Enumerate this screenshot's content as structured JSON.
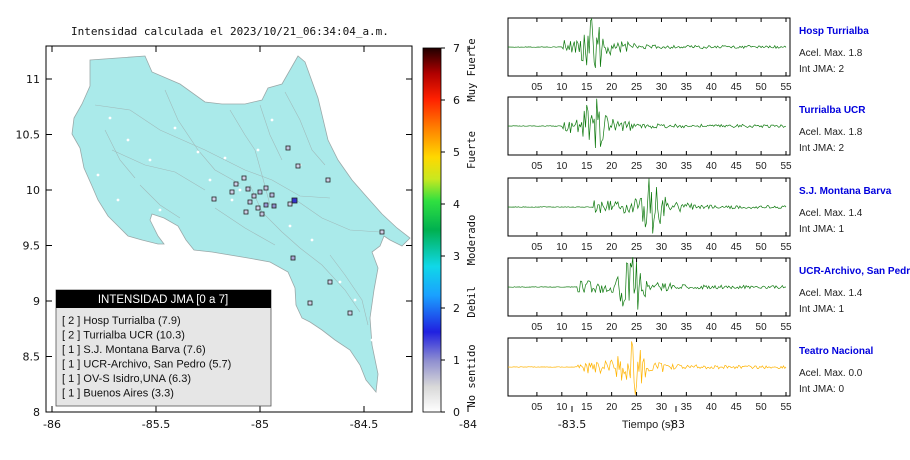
{
  "map": {
    "title": "Intensidad calculada el 2023/10/21_06:34:04_a.m.",
    "y_ticks": [
      "11",
      "10.5",
      "10",
      "9.5",
      "9",
      "8.5",
      "8"
    ],
    "x_ticks": [
      "-86",
      "-85.5",
      "-85",
      "-84.5",
      "-84",
      "-83.5",
      "-83"
    ],
    "colorbar": {
      "ticks": [
        "7",
        "6",
        "5",
        "4",
        "3",
        "2",
        "1",
        "0"
      ],
      "bands": [
        "Muy Fuerte",
        "Fuerte",
        "Moderado",
        "Debil",
        "No sentido"
      ]
    },
    "legend": {
      "header": "INTENSIDAD JMA [0 a 7]",
      "entries": [
        "[ 2 ]  Hosp Turrialba (7.9)",
        "[ 2 ]  Turrialba UCR (10.3)",
        "[ 1 ]  S.J. Montana Barva (7.6)",
        "[ 1 ]  UCR-Archivo, San Pedro (5.7)",
        "[ 1 ]  OV-S Isidro,UNA (6.3)",
        "[ 1 ]  Buenos Aires (3.3)"
      ]
    }
  },
  "waveforms": {
    "x_ticks": [
      "05",
      "10",
      "15",
      "20",
      "25",
      "30",
      "35",
      "40",
      "45",
      "50",
      "55"
    ],
    "xlabel": "Tiempo (s)",
    "stations": [
      {
        "name": "Hosp Turrialba",
        "accel": "Acel. Max. 1.8",
        "jma": "Int JMA: 2",
        "color": "#0f7a0f",
        "onset_s": 10,
        "peak_s": 16.5
      },
      {
        "name": "Turrialba UCR",
        "accel": "Acel. Max. 1.8",
        "jma": "Int JMA: 2",
        "color": "#0f7a0f",
        "onset_s": 10,
        "peak_s": 16.5
      },
      {
        "name": "S.J. Montana Barva",
        "accel": "Acel. Max. 1.4",
        "jma": "Int JMA: 1",
        "color": "#0f7a0f",
        "onset_s": 16,
        "peak_s": 28
      },
      {
        "name": "UCR-Archivo, San Pedro",
        "accel": "Acel. Max. 1.4",
        "jma": "Int JMA: 1",
        "color": "#0f7a0f",
        "onset_s": 13,
        "peak_s": 24
      },
      {
        "name": "Teatro Nacional",
        "accel": "Acel. Max. 0.0",
        "jma": "Int JMA: 0",
        "color": "#ffb300",
        "onset_s": 13,
        "peak_s": 24
      }
    ]
  },
  "chart_data": [
    {
      "type": "scatter",
      "title": "Intensidad calculada el 2023/10/21_06:34:04_a.m.",
      "xlabel": "",
      "ylabel": "",
      "xlim": [
        -86,
        -82.5
      ],
      "ylim": [
        8,
        11.3
      ],
      "colorbar_range": [
        0,
        7
      ]
    },
    {
      "type": "line",
      "xlabel": "Tiempo (s)",
      "xlim": [
        0,
        55
      ],
      "series": [
        {
          "name": "Hosp Turrialba"
        },
        {
          "name": "Turrialba UCR"
        },
        {
          "name": "S.J. Montana Barva"
        },
        {
          "name": "UCR-Archivo, San Pedro"
        },
        {
          "name": "Teatro Nacional"
        }
      ]
    }
  ]
}
